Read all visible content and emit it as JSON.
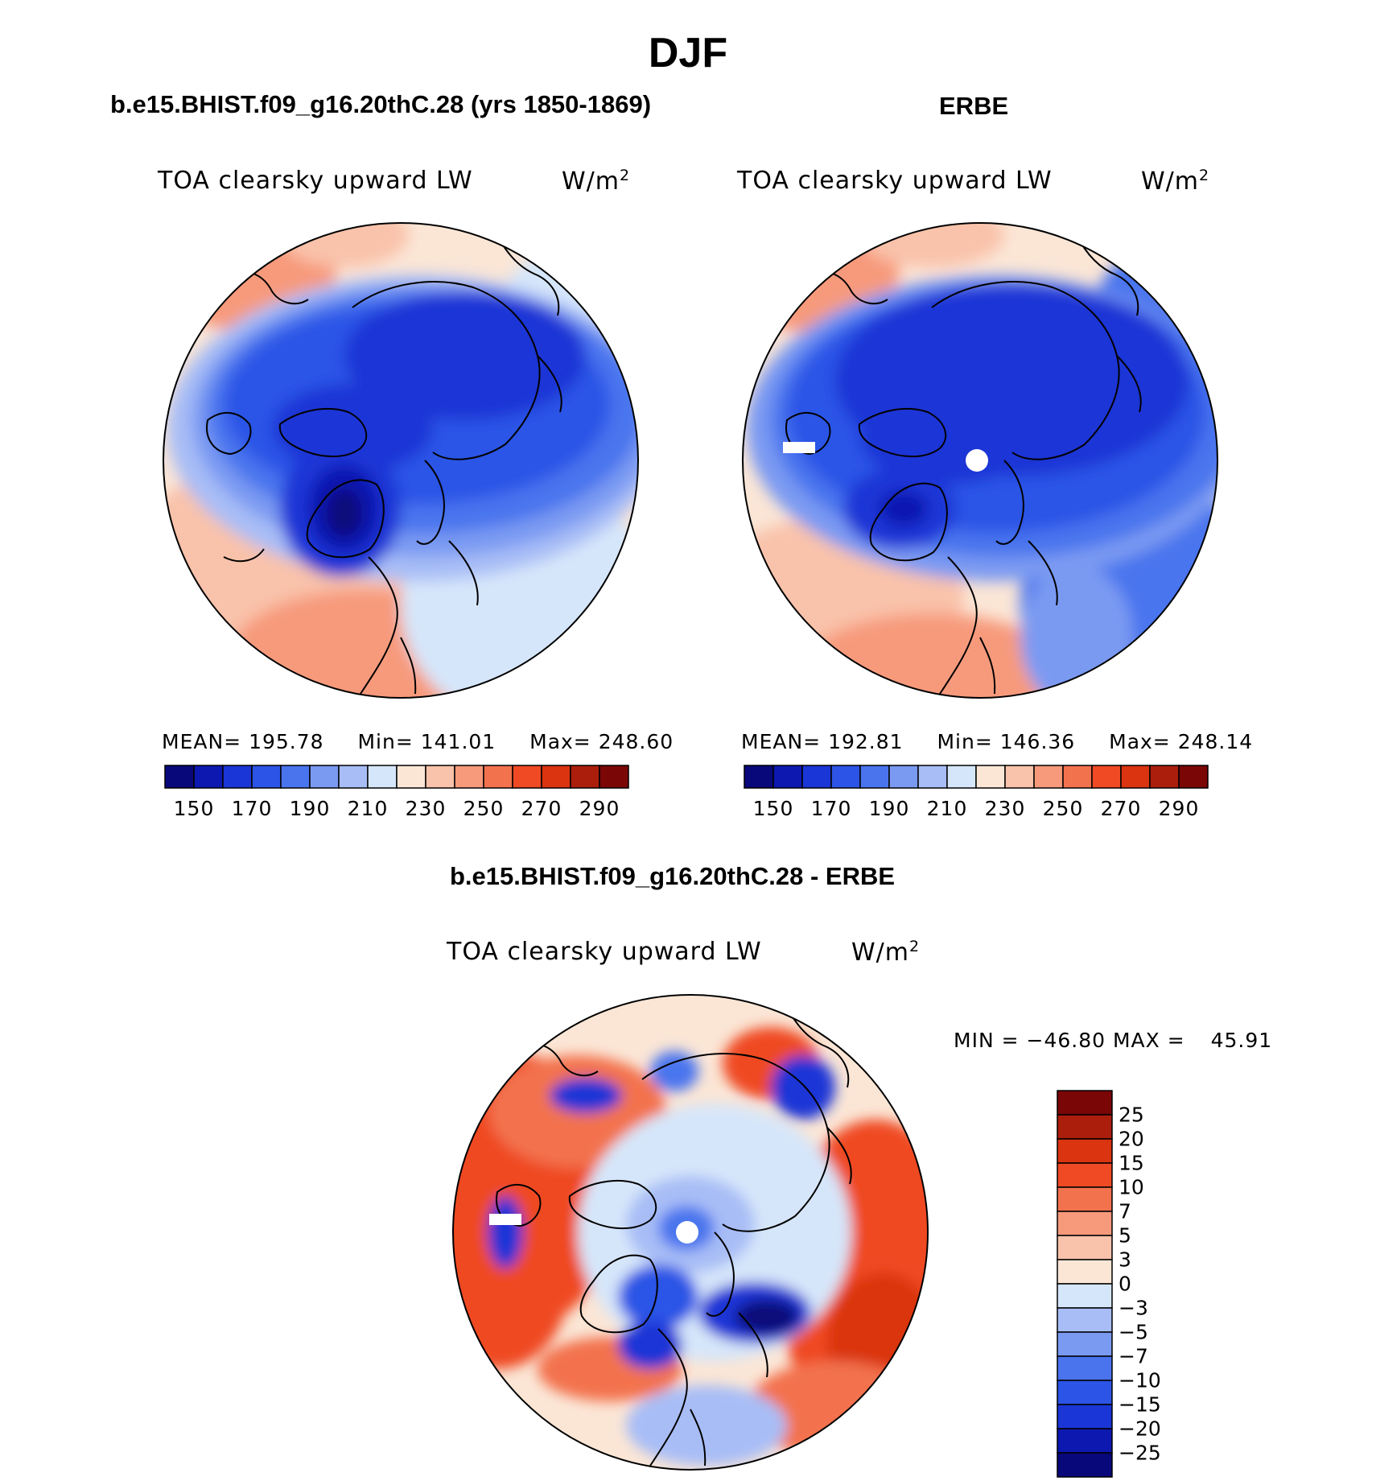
{
  "figure": {
    "season": "DJF"
  },
  "chart_data": [
    {
      "type": "heatmap",
      "title": "b.e15.BHIST.f09_g16.20thC.28 (yrs 1850-1869)",
      "variable": "TOA clearsky upward LW",
      "units_base": "W/m",
      "units_exp": "2",
      "projection": "north polar stereographic",
      "mean_label": "MEAN=",
      "mean": "195.78",
      "min_label": "Min=",
      "min": "141.01",
      "max_label": "Max=",
      "max": "248.60",
      "colorbar_labels": [
        "150",
        "170",
        "190",
        "210",
        "230",
        "250",
        "270",
        "290"
      ]
    },
    {
      "type": "heatmap",
      "title": "ERBE",
      "variable": "TOA clearsky upward LW",
      "units_base": "W/m",
      "units_exp": "2",
      "projection": "north polar stereographic",
      "mean_label": "MEAN=",
      "mean": "192.81",
      "min_label": "Min=",
      "min": "146.36",
      "max_label": "Max=",
      "max": "248.14",
      "colorbar_labels": [
        "150",
        "170",
        "190",
        "210",
        "230",
        "250",
        "270",
        "290"
      ]
    },
    {
      "type": "heatmap",
      "title": "b.e15.BHIST.f09_g16.20thC.28 - ERBE",
      "variable": "TOA clearsky upward LW",
      "units_base": "W/m",
      "units_exp": "2",
      "projection": "north polar stereographic",
      "min_label": "MIN =",
      "min": "−46.80",
      "max_label": "MAX =",
      "max": "45.91",
      "colorbar_labels": [
        "25",
        "20",
        "15",
        "10",
        "7",
        "5",
        "3",
        "0",
        "−3",
        "−5",
        "−7",
        "−10",
        "−15",
        "−20",
        "−25"
      ]
    }
  ],
  "palettes": {
    "absolute": [
      "#08087a",
      "#0c18b0",
      "#1a36d6",
      "#2c54e6",
      "#4a74ee",
      "#7a9af2",
      "#a8bdf6",
      "#d6e6fa",
      "#fbe6d6",
      "#f9c2aa",
      "#f79a7c",
      "#f3724e",
      "#ef4a24",
      "#da3410",
      "#ac1e0c",
      "#7a0606"
    ],
    "difference": [
      "#7a0606",
      "#ac1e0c",
      "#da3410",
      "#ef4a24",
      "#f3724e",
      "#f79a7c",
      "#f9c2aa",
      "#fbe6d6",
      "#d6e6fa",
      "#a8bdf6",
      "#7a9af2",
      "#4a74ee",
      "#2c54e6",
      "#1a36d6",
      "#0c18b0",
      "#08087a"
    ]
  }
}
